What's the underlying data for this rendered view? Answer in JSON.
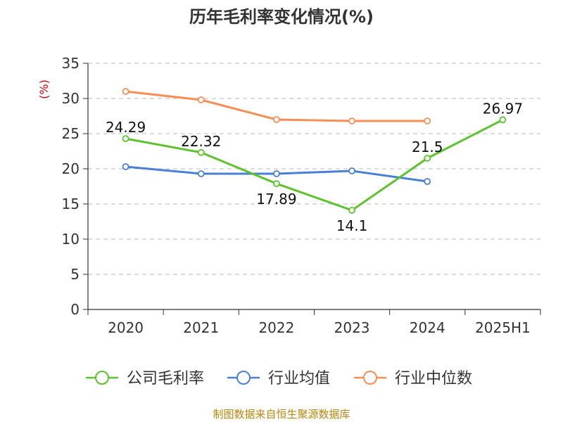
{
  "chart_data": {
    "type": "line",
    "title": "历年毛利率变化情况(%)",
    "ylabel": "(%)",
    "xlabel": "",
    "categories": [
      "2020",
      "2021",
      "2022",
      "2023",
      "2024",
      "2025H1"
    ],
    "ylim": [
      0,
      35
    ],
    "yticks": [
      0,
      5,
      10,
      15,
      20,
      25,
      30,
      35
    ],
    "grid": true,
    "legend_position": "bottom",
    "series": [
      {
        "name": "公司毛利率",
        "color": "#5cc22d",
        "values": [
          24.29,
          22.32,
          17.89,
          14.1,
          21.5,
          26.97
        ],
        "labels": [
          "24.29",
          "22.32",
          "17.89",
          "14.1",
          "21.5",
          "26.97"
        ]
      },
      {
        "name": "行业均值",
        "color": "#4a7fd6",
        "values": [
          20.3,
          19.3,
          19.3,
          19.7,
          18.2,
          null
        ]
      },
      {
        "name": "行业中位数",
        "color": "#f88e56",
        "values": [
          31.0,
          29.8,
          27.0,
          26.8,
          26.8,
          null
        ]
      }
    ]
  },
  "footer": {
    "source": "制图数据来自恒生聚源数据库"
  }
}
